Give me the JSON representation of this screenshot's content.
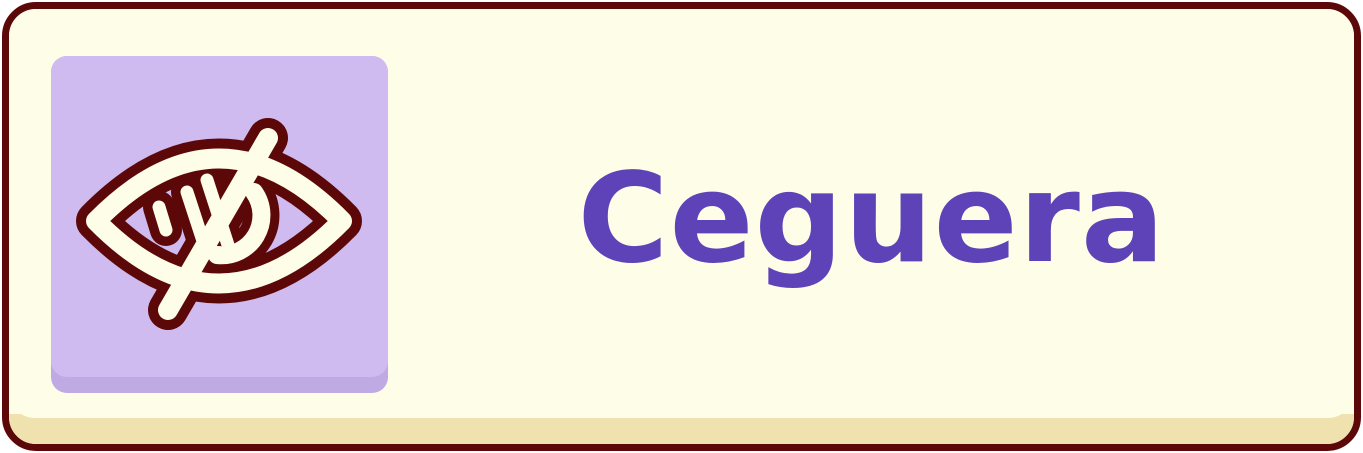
{
  "card": {
    "title": "Ceguera",
    "icon": "eye-slash-icon"
  },
  "colors": {
    "border": "#5c0808",
    "background": "#fefde8",
    "bottom_edge": "#efe2ae",
    "icon_tile": "#cfbbef",
    "title_text": "#5e43b8"
  }
}
